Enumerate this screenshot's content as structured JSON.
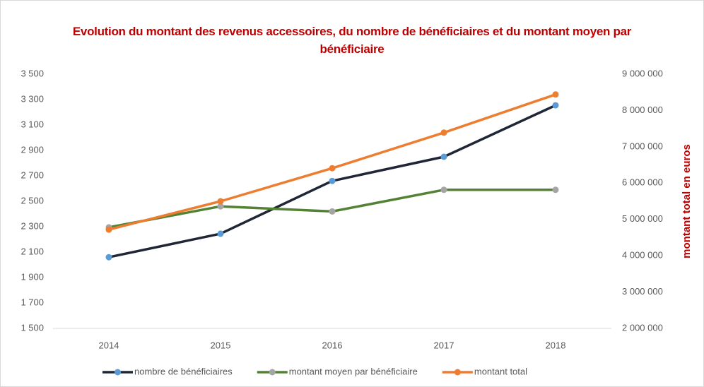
{
  "chart_data": {
    "type": "line",
    "title": "Evolution du montant des revenus accessoires,  du nombre de bénéficiaires et du montant moyen par bénéficiaire",
    "y2_label": "montant total en euros",
    "categories": [
      "2014",
      "2015",
      "2016",
      "2017",
      "2018"
    ],
    "series": [
      {
        "name": "nombre de bénéficiaires",
        "color": "#1f2636",
        "marker_color": "#5b9bd5",
        "values": [
          2060,
          2245,
          2660,
          2850,
          3255
        ]
      },
      {
        "name": "montant moyen par bénéficiaire",
        "color": "#548235",
        "marker_color": "#a5a5a5",
        "values": [
          2295,
          2460,
          2420,
          2590,
          2590
        ]
      },
      {
        "name": "montant total",
        "color": "#ed7d31",
        "marker_color": "#ed7d31",
        "axis": "y2",
        "values": [
          4720000,
          5500000,
          6410000,
          7390000,
          8440000
        ]
      }
    ],
    "ylim": [
      1500,
      3500
    ],
    "yticks": [
      {
        "value": 1500,
        "label": "1 500"
      },
      {
        "value": 1700,
        "label": "1 700"
      },
      {
        "value": 1900,
        "label": "1 900"
      },
      {
        "value": 2100,
        "label": "2 100"
      },
      {
        "value": 2300,
        "label": "2 300"
      },
      {
        "value": 2500,
        "label": "2 500"
      },
      {
        "value": 2700,
        "label": "2 700"
      },
      {
        "value": 2900,
        "label": "2 900"
      },
      {
        "value": 3100,
        "label": "3 100"
      },
      {
        "value": 3300,
        "label": "3 300"
      },
      {
        "value": 3500,
        "label": "3 500"
      }
    ],
    "y2lim": [
      2000000,
      9000000
    ],
    "y2ticks": [
      {
        "value": 2000000,
        "label": "2 000 000"
      },
      {
        "value": 3000000,
        "label": "3 000 000"
      },
      {
        "value": 4000000,
        "label": "4 000 000"
      },
      {
        "value": 5000000,
        "label": "5 000 000"
      },
      {
        "value": 6000000,
        "label": "6 000 000"
      },
      {
        "value": 7000000,
        "label": "7 000 000"
      },
      {
        "value": 8000000,
        "label": "8 000 000"
      },
      {
        "value": 9000000,
        "label": "9 000 000"
      }
    ],
    "legend": "bottom"
  }
}
